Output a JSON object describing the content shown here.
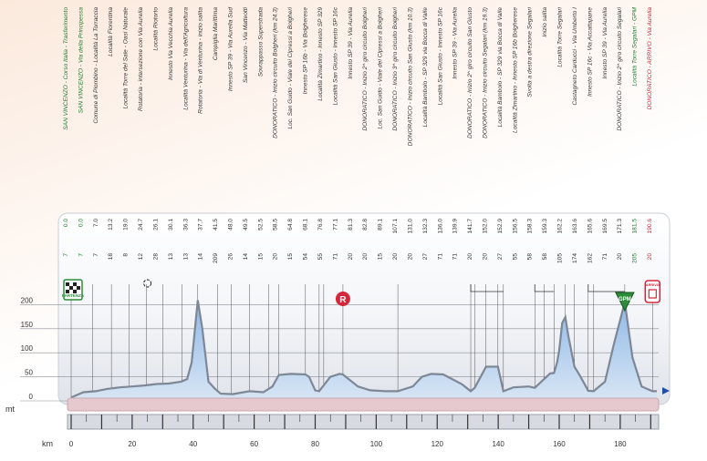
{
  "chart_data": {
    "type": "area",
    "title": "",
    "xlabel": "km",
    "ylabel": "mt",
    "xlim": [
      0,
      192
    ],
    "ylim": [
      0,
      250
    ],
    "xticks": [
      0,
      20,
      40,
      60,
      80,
      100,
      120,
      140,
      160,
      180
    ],
    "yticks": [
      0,
      50,
      100,
      150,
      200
    ],
    "series": [
      {
        "values": [
          [
            0,
            7
          ],
          [
            4,
            18
          ],
          [
            8,
            20
          ],
          [
            12,
            25
          ],
          [
            16,
            28
          ],
          [
            20,
            30
          ],
          [
            24,
            32
          ],
          [
            28,
            35
          ],
          [
            32,
            36
          ],
          [
            36,
            40
          ],
          [
            38,
            45
          ],
          [
            39.5,
            80
          ],
          [
            41.5,
            209
          ],
          [
            43,
            150
          ],
          [
            45,
            40
          ],
          [
            47,
            26
          ],
          [
            49,
            15
          ],
          [
            53,
            14
          ],
          [
            58.5,
            20
          ],
          [
            63,
            18
          ],
          [
            66,
            30
          ],
          [
            68.1,
            54
          ],
          [
            72,
            56
          ],
          [
            76.8,
            55
          ],
          [
            78,
            50
          ],
          [
            80,
            22
          ],
          [
            81.3,
            20
          ],
          [
            85,
            50
          ],
          [
            88,
            56
          ],
          [
            89.1,
            55
          ],
          [
            94,
            30
          ],
          [
            98,
            22
          ],
          [
            103,
            20
          ],
          [
            107.1,
            20
          ],
          [
            112,
            30
          ],
          [
            115,
            50
          ],
          [
            118,
            56
          ],
          [
            122,
            55
          ],
          [
            128,
            35
          ],
          [
            131,
            20
          ],
          [
            132.3,
            27
          ],
          [
            136,
            71
          ],
          [
            139.9,
            71
          ],
          [
            141.7,
            20
          ],
          [
            145,
            28
          ],
          [
            150,
            30
          ],
          [
            152,
            27
          ],
          [
            155,
            45
          ],
          [
            157,
            57
          ],
          [
            158.3,
            58
          ],
          [
            159.3,
            80
          ],
          [
            160,
            105
          ],
          [
            161,
            162
          ],
          [
            162,
            174
          ],
          [
            163,
            135
          ],
          [
            165,
            71
          ],
          [
            167,
            50
          ],
          [
            169.5,
            21
          ],
          [
            171.3,
            20
          ],
          [
            175,
            40
          ],
          [
            178,
            120
          ],
          [
            181.5,
            205
          ],
          [
            184,
            90
          ],
          [
            187,
            30
          ],
          [
            190.6,
            20
          ],
          [
            192,
            20
          ]
        ]
      }
    ],
    "waypoint_labels": [
      {
        "km": "0.0",
        "alt": "7",
        "text": "SAN VINCENZO - Corso Italia - Trasferimento",
        "green": true
      },
      {
        "km": "0.0",
        "alt": "7",
        "text": "SAN VINCENZO - Via della Principessa",
        "green": true
      },
      {
        "km": "7.0",
        "alt": "7",
        "text": "Comune di Piombino - Località La Torraccia"
      },
      {
        "km": "13.2",
        "alt": "18",
        "text": "Località Fiorentina"
      },
      {
        "km": "19.0",
        "alt": "8",
        "text": "Località Torre del Sale - Oasi Naturale"
      },
      {
        "km": "24.7",
        "alt": "12",
        "text": "Rotatoria - intersezione con Via Aurelia"
      },
      {
        "km": "26.1",
        "alt": "28",
        "text": "Località Riotorto"
      },
      {
        "km": "30.1",
        "alt": "13",
        "text": "Innesto Via Vecchia Aurelia"
      },
      {
        "km": "36.3",
        "alt": "13",
        "text": "Località Venturina - Via dell'Agricoltura"
      },
      {
        "km": "37.7",
        "alt": "14",
        "text": "Rotatoria - Via di Venturina - inizio salita"
      },
      {
        "km": "41.5",
        "alt": "209",
        "text": "Campiglia Marittima"
      },
      {
        "km": "48.0",
        "alt": "26",
        "text": "Innesto SP 39 - Via Aurelia Sud"
      },
      {
        "km": "49.5",
        "alt": "14",
        "text": "San Vincenzo - Via Matteotti"
      },
      {
        "km": "52.5",
        "alt": "15",
        "text": "Sovrappasso Superstrada"
      },
      {
        "km": "58.5",
        "alt": "20",
        "text": "DONORATICO - Inizio circuito Bolgheri (km 24.3)"
      },
      {
        "km": "64.8",
        "alt": "15",
        "text": "Loc. San Guido - Viale dei Cipressi a Bolgheri"
      },
      {
        "km": "68.1",
        "alt": "54",
        "text": "Innesto SP 16b - Via Bolgherese"
      },
      {
        "km": "76.8",
        "alt": "55",
        "text": "Località Zimartino - Innesto SP 329"
      },
      {
        "km": "77.1",
        "alt": "71",
        "text": "Località San Giusto - Innesto SP 16c"
      },
      {
        "km": "81.3",
        "alt": "20",
        "text": "Innesto SP 39 - Via Aurelia"
      },
      {
        "km": "82.8",
        "alt": "20",
        "text": "DONORATICO - Inizio 2^ giro circuito Bolgheri"
      },
      {
        "km": "89.1",
        "alt": "15",
        "text": "Loc. San Guido - Viale dei Cipressi a Bolgheri"
      },
      {
        "km": "107.1",
        "alt": "20",
        "text": "DONORATICO - Inizio 3^ giro circuito Bolgheri"
      },
      {
        "km": "131.0",
        "alt": "20",
        "text": "DONORATICO - Inizio circuito San Giusto (km 10.3)"
      },
      {
        "km": "132.3",
        "alt": "27",
        "text": "Località Bambolo - SP 329 via Bocca di Valle"
      },
      {
        "km": "136.0",
        "alt": "71",
        "text": "Località San Giusto - Innesto SP 16c"
      },
      {
        "km": "139.9",
        "alt": "71",
        "text": "Innesto SP 39 - Via Aurelia"
      },
      {
        "km": "141.7",
        "alt": "20",
        "text": "DONORATICO - Inizio 2^ giro circuito San Giusto"
      },
      {
        "km": "152.0",
        "alt": "20",
        "text": "DONORATICO - Inizio circuito Segalari (km 19.3)"
      },
      {
        "km": "152.9",
        "alt": "27",
        "text": "Località Bambolo - SP 329 via Bocca di Valle"
      },
      {
        "km": "156.5",
        "alt": "55",
        "text": "Località Zimartino - Innesto SP 16b Bolgherese"
      },
      {
        "km": "158.3",
        "alt": "58",
        "text": "Svolta a destra direzione Segalari"
      },
      {
        "km": "159.3",
        "alt": "58",
        "text": "Inizio salita"
      },
      {
        "km": "162.2",
        "alt": "105",
        "text": "Località Torre Segalari"
      },
      {
        "km": "163.6",
        "alt": "174",
        "text": "Castagneto Carducci - Via Umberto I"
      },
      {
        "km": "165.6",
        "alt": "162",
        "text": "Innesto SP 16c - Via Accattapane"
      },
      {
        "km": "169.5",
        "alt": "71",
        "text": "Innesto SP 39 - Via Aurelia"
      },
      {
        "km": "171.3",
        "alt": "20",
        "text": "DONORATICO - Inizio 2^ giro circuito Segalari"
      },
      {
        "km": "181.5",
        "alt": "205",
        "text": "Località Torre Segalari - GPM",
        "green": true
      },
      {
        "km": "190.6",
        "alt": "20",
        "text": "DONORATICO - ARRIVO - Via Aurelia",
        "red": true
      }
    ],
    "markers": [
      {
        "text": "PARTENZA",
        "color": "#2e8b3a"
      },
      {
        "text": "R",
        "color": "#d4283a"
      },
      {
        "text": "GPM",
        "color": "#2e8b3a"
      },
      {
        "text": "ARRIVO",
        "color": "#d4283a"
      }
    ]
  }
}
